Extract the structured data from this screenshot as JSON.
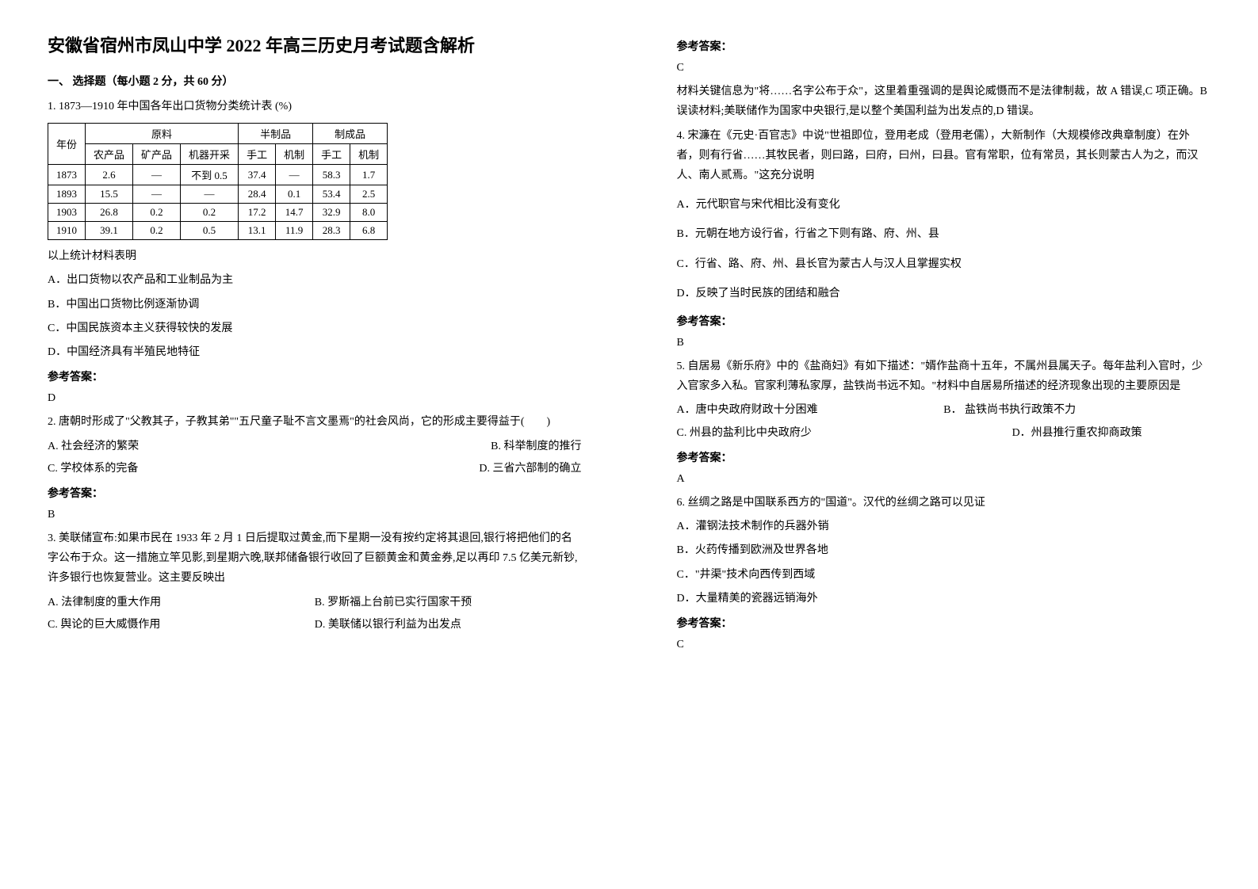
{
  "title": "安徽省宿州市凤山中学 2022 年高三历史月考试题含解析",
  "section1_header": "一、 选择题（每小题 2 分，共 60 分）",
  "q1": {
    "prompt": "1. 1873—1910 年中国各年出口货物分类统计表 (%)",
    "table": {
      "header_row1": [
        "年份",
        "原料",
        "半制品",
        "制成品"
      ],
      "header_row2": [
        "",
        "农产品",
        "矿产品",
        "机器开采",
        "手工",
        "机制",
        "手工",
        "机制"
      ],
      "rows": [
        [
          "1873",
          "2.6",
          "—",
          "不到 0.5",
          "37.4",
          "—",
          "58.3",
          "1.7"
        ],
        [
          "1893",
          "15.5",
          "—",
          "—",
          "28.4",
          "0.1",
          "53.4",
          "2.5"
        ],
        [
          "1903",
          "26.8",
          "0.2",
          "0.2",
          "17.2",
          "14.7",
          "32.9",
          "8.0"
        ],
        [
          "1910",
          "39.1",
          "0.2",
          "0.5",
          "13.1",
          "11.9",
          "28.3",
          "6.8"
        ]
      ]
    },
    "sub_prompt": "以上统计材料表明",
    "options": [
      "A．出口货物以农产品和工业制品为主",
      "B．中国出口货物比例逐渐协调",
      "C．中国民族资本主义获得较快的发展",
      "D．中国经济具有半殖民地特征"
    ],
    "answer_label": "参考答案：",
    "answer": "D"
  },
  "q2": {
    "prompt": "2. 唐朝时形成了\"父教其子，子教其弟\"\"五尺童子耻不言文墨焉\"的社会风尚，它的形成主要得益于(　　)",
    "options": [
      {
        "left": "A. 社会经济的繁荣",
        "right": "B. 科举制度的推行"
      },
      {
        "left": "C. 学校体系的完备",
        "right": "D. 三省六部制的确立"
      }
    ],
    "answer_label": "参考答案：",
    "answer": "B"
  },
  "q3": {
    "prompt": "3. 美联储宣布:如果市民在 1933 年 2 月 1 日后提取过黄金,而下星期一没有按约定将其退回,银行将把他们的名字公布于众。这一措施立竿见影,到星期六晚,联邦储备银行收回了巨额黄金和黄金券,足以再印 7.5 亿美元新钞,许多银行也恢复营业。这主要反映出",
    "options": [
      {
        "left": "A. 法律制度的重大作用",
        "right": "B. 罗斯福上台前已实行国家干预"
      },
      {
        "left": "C. 舆论的巨大威慑作用",
        "right": "D. 美联储以银行利益为出发点"
      }
    ],
    "answer_label": "参考答案：",
    "answer": "C",
    "explanation": "材料关键信息为\"将……名字公布于众\"，这里着重强调的是舆论威慑而不是法律制裁，故 A 错误,C 项正确。B 误读材料;美联储作为国家中央银行,是以整个美国利益为出发点的,D 错误。"
  },
  "q4": {
    "prompt": "4. 宋濂在《元史·百官志》中说\"世祖即位，登用老成（登用老儒），大新制作（大规模修改典章制度）在外者，则有行省……其牧民者，则曰路，曰府，曰州，曰县。官有常职，位有常员，其长则蒙古人为之，而汉人、南人贰焉。\"这充分说明",
    "options": [
      "A．元代职官与宋代相比没有变化",
      "B．元朝在地方设行省，行省之下则有路、府、州、县",
      "C．行省、路、府、州、县长官为蒙古人与汉人且掌握实权",
      "D．反映了当时民族的团结和融合"
    ],
    "answer_label": "参考答案：",
    "answer": "B"
  },
  "q5": {
    "prompt": "5. 自居易《新乐府》中的《盐商妇》有如下描述：\"婿作盐商十五年，不属州县属天子。每年盐利入官时，少入官家多入私。官家利薄私家厚，盐铁尚书远不知。\"材料中自居易所描述的经济现象出现的主要原因是",
    "options": [
      {
        "left": "A．唐中央政府财政十分困难",
        "right": "B． 盐铁尚书执行政策不力"
      },
      {
        "left": "C. 州县的盐利比中央政府少",
        "right": "D．州县推行重农抑商政策"
      }
    ],
    "answer_label": "参考答案：",
    "answer": "A"
  },
  "q6": {
    "prompt": "6. 丝绸之路是中国联系西方的\"国道\"。汉代的丝绸之路可以见证",
    "options": [
      "A．灌钢法技术制作的兵器外销",
      "B．火药传播到欧洲及世界各地",
      "C．\"井渠\"技术向西传到西域",
      "D．大量精美的瓷器远销海外"
    ],
    "answer_label": "参考答案：",
    "answer": "C"
  }
}
